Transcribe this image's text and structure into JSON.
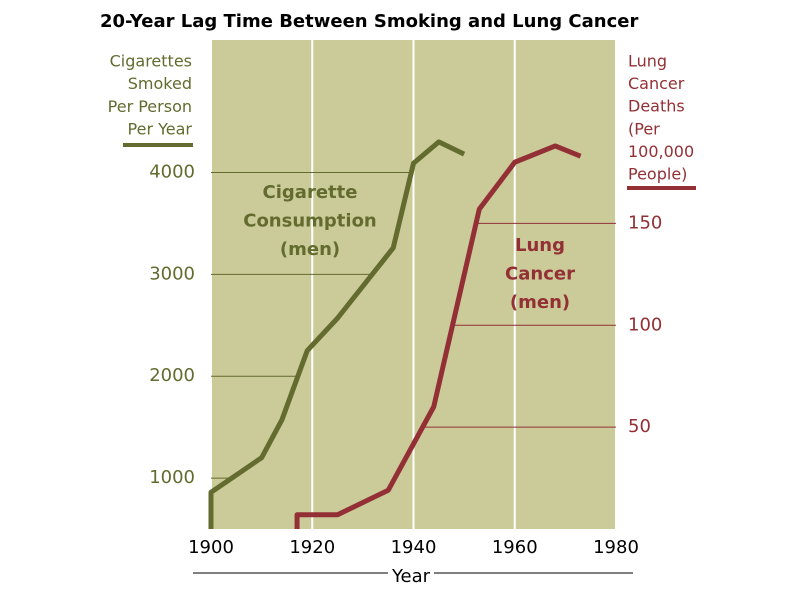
{
  "chart_data": {
    "type": "line",
    "title": "20-Year Lag Time Between Smoking and Lung Cancer",
    "xlabel": "Year",
    "ylabel": [
      "Cigarettes",
      "Smoked",
      "Per Person",
      "Per Year"
    ],
    "y2label": [
      "Lung",
      "Cancer",
      "Deaths",
      "(Per",
      "100,000",
      "People)"
    ],
    "xlim": [
      1900,
      1980
    ],
    "xticks": [
      1900,
      1920,
      1940,
      1960,
      1980
    ],
    "ylim": [
      500,
      5300
    ],
    "yticks": [
      1000,
      2000,
      3000,
      4000
    ],
    "y2lim": [
      0,
      240
    ],
    "y2ticks": [
      50,
      100,
      150
    ],
    "grid": true,
    "background": "#cbcb9a",
    "annotations": [
      {
        "lines": [
          "Cigarette",
          "Consumption",
          "(men)"
        ]
      },
      {
        "lines": [
          "Lung",
          "Cancer",
          "(men)"
        ]
      }
    ],
    "series": [
      {
        "color": "#636b2f",
        "x": [
          1900,
          1900,
          1910,
          1914,
          1919,
          1925,
          1936,
          1940,
          1945,
          1950
        ],
        "values": [
          500,
          860,
          1200,
          1570,
          2250,
          2570,
          3260,
          4090,
          4300,
          4180
        ]
      },
      {
        "color": "#933035",
        "axis": "y2",
        "x": [
          1917,
          1917,
          1925,
          1935,
          1944,
          1953,
          1960,
          1968,
          1973
        ],
        "values": [
          0,
          7,
          7,
          19,
          60,
          157,
          180,
          188,
          183
        ]
      }
    ]
  }
}
